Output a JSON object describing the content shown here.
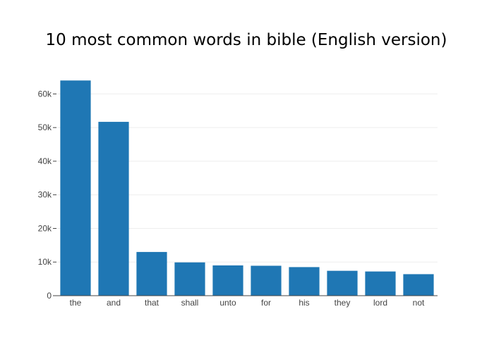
{
  "chart_data": {
    "type": "bar",
    "title": "10 most common words in bible (English version)",
    "xlabel": "",
    "ylabel": "",
    "categories": [
      "the",
      "and",
      "that",
      "shall",
      "unto",
      "for",
      "his",
      "they",
      "lord",
      "not"
    ],
    "values": [
      64000,
      51700,
      13000,
      9900,
      9000,
      8900,
      8500,
      7400,
      7200,
      6400
    ],
    "ylim": [
      0,
      67000
    ],
    "yticks": [
      0,
      10000,
      20000,
      30000,
      40000,
      50000,
      60000
    ],
    "ytick_labels": [
      "0",
      "10k",
      "20k",
      "30k",
      "40k",
      "50k",
      "60k"
    ],
    "grid": true,
    "bar_color": "#1f77b4"
  }
}
